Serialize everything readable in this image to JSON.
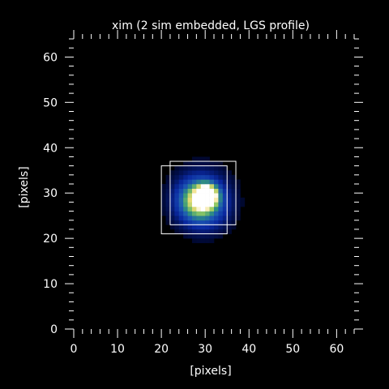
{
  "chart_data": {
    "type": "heatmap",
    "title": "xim (2 sim embedded, LGS profile)",
    "xlabel": "[pixels]",
    "ylabel": "[pixels]",
    "xlim": [
      0,
      64
    ],
    "ylim": [
      0,
      64
    ],
    "xticks": [
      0,
      10,
      20,
      30,
      40,
      50,
      60
    ],
    "yticks": [
      0,
      10,
      20,
      30,
      40,
      50,
      60
    ],
    "xtick_labels": [
      "0",
      "10",
      "20",
      "30",
      "40",
      "50",
      "60"
    ],
    "ytick_labels": [
      "0",
      "10",
      "20",
      "30",
      "40",
      "50",
      "60"
    ],
    "minor_tick_step": 2,
    "background_color": "#000000",
    "frame_color": "#ffffff",
    "boxes": [
      {
        "x0": 20,
        "x1": 35,
        "y0": 21,
        "y1": 36
      },
      {
        "x0": 22,
        "x1": 37,
        "y0": 23,
        "y1": 37
      }
    ],
    "blobs": [
      {
        "x": 30.5,
        "y": 29.5,
        "sigma": 1.6,
        "amp": 1.0
      },
      {
        "x": 28.0,
        "y": 28.5,
        "sigma": 2.8,
        "amp": 0.55
      },
      {
        "x": 30.0,
        "y": 27.5,
        "sigma": 3.6,
        "amp": 0.35
      },
      {
        "x": 29.0,
        "y": 29.0,
        "sigma": 5.5,
        "amp": 0.18
      }
    ],
    "colormap": [
      {
        "v": 0.0,
        "c": "#000000"
      },
      {
        "v": 0.08,
        "c": "#000a3c"
      },
      {
        "v": 0.25,
        "c": "#0a28a0"
      },
      {
        "v": 0.45,
        "c": "#1e5ab4"
      },
      {
        "v": 0.62,
        "c": "#32967a"
      },
      {
        "v": 0.78,
        "c": "#9acd64"
      },
      {
        "v": 0.9,
        "c": "#f0dc78"
      },
      {
        "v": 1.0,
        "c": "#ffffff"
      }
    ]
  }
}
